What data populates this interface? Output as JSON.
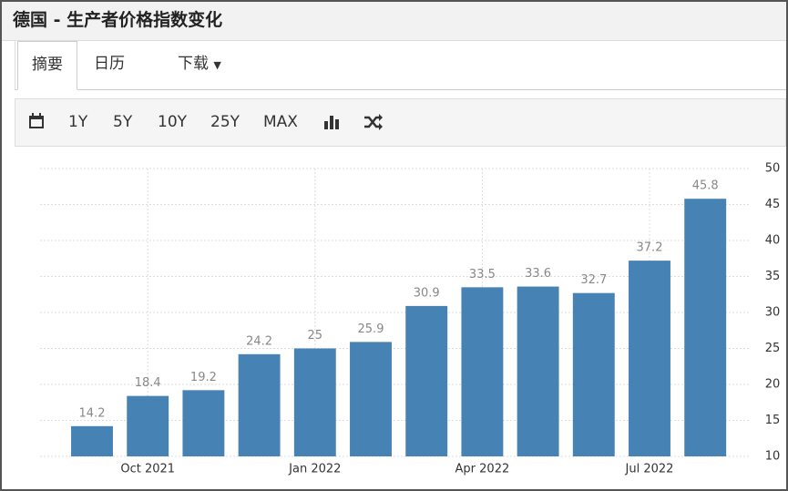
{
  "header": {
    "title": "德国 - 生产者价格指数变化"
  },
  "tabs": [
    "摘要",
    "日历",
    "下载"
  ],
  "toolbar": [
    "1Y",
    "5Y",
    "10Y",
    "25Y",
    "MAX"
  ],
  "chart_data": {
    "type": "bar",
    "categories": [
      null,
      "Oct 2021",
      null,
      null,
      "Jan 2022",
      null,
      null,
      "Apr 2022",
      null,
      null,
      "Jul 2022",
      null
    ],
    "values": [
      14.2,
      18.4,
      19.2,
      24.2,
      25,
      25.9,
      30.9,
      33.5,
      33.6,
      32.7,
      37.2,
      45.8
    ],
    "color": "#4682b4",
    "ylim": [
      10,
      50
    ],
    "yticks": [
      10,
      15,
      20,
      25,
      30,
      35,
      40,
      45,
      50
    ],
    "grid": true
  }
}
